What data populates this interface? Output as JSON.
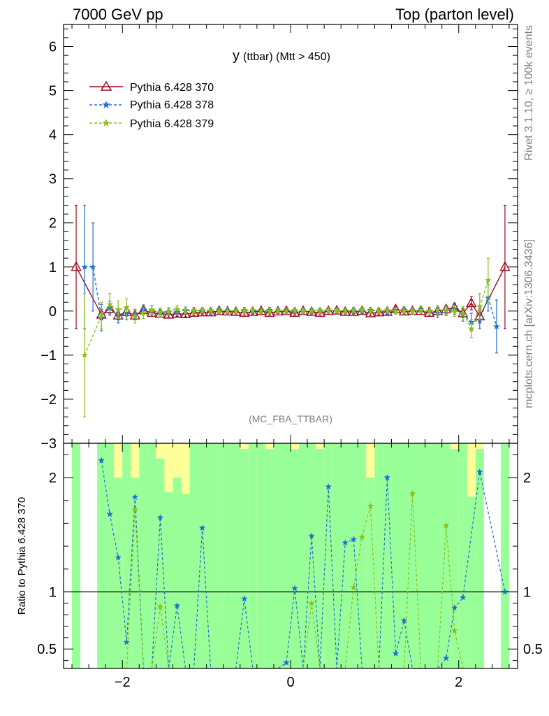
{
  "header": {
    "left": "7000 GeV pp",
    "right": "Top (parton level)"
  },
  "side": {
    "rivet": "Rivet 3.1.10, ≥ 100k events",
    "mcplots": "mcplots.cern.ch [arXiv:1306.3436]"
  },
  "chart_data": {
    "type": "line",
    "title_main": "y",
    "title_sub": "(ttbar) (Mtt > 450)",
    "watermark": "(MC_FBA_TTBAR)",
    "ylabel_ratio": "Ratio to Pythia 6.428 370",
    "xlim": [
      -2.7,
      2.7
    ],
    "ylim": [
      -3,
      6.5
    ],
    "ratio_ylim": [
      0.33,
      2.3
    ],
    "x_ticks": [
      -2,
      0,
      2
    ],
    "y_ticks": [
      -3,
      -2,
      -1,
      0,
      1,
      2,
      3,
      4,
      5,
      6
    ],
    "ratio_ticks": [
      0.5,
      1,
      2
    ],
    "legend_placement": "top-left",
    "x": [
      -2.55,
      -2.45,
      -2.35,
      -2.25,
      -2.15,
      -2.05,
      -1.95,
      -1.85,
      -1.75,
      -1.65,
      -1.55,
      -1.45,
      -1.35,
      -1.25,
      -1.15,
      -1.05,
      -0.95,
      -0.85,
      -0.75,
      -0.65,
      -0.55,
      -0.45,
      -0.35,
      -0.25,
      -0.15,
      -0.05,
      0.05,
      0.15,
      0.25,
      0.35,
      0.45,
      0.55,
      0.65,
      0.75,
      0.85,
      0.95,
      1.05,
      1.15,
      1.25,
      1.35,
      1.45,
      1.55,
      1.65,
      1.75,
      1.85,
      1.95,
      2.05,
      2.15,
      2.25,
      2.35,
      2.45,
      2.55
    ],
    "series": [
      {
        "name": "Pythia 6.428 370",
        "color": "#9b0a20",
        "marker": "triangle",
        "values": [
          1.0,
          null,
          null,
          -0.08,
          0.05,
          -0.1,
          -0.02,
          -0.1,
          0.02,
          -0.04,
          -0.06,
          -0.08,
          -0.06,
          -0.07,
          -0.04,
          -0.03,
          -0.03,
          0.0,
          -0.01,
          -0.02,
          -0.04,
          -0.02,
          0.0,
          -0.04,
          -0.01,
          0.0,
          -0.04,
          0.0,
          -0.02,
          -0.04,
          0.0,
          0.01,
          -0.02,
          -0.02,
          0.0,
          -0.05,
          -0.03,
          -0.02,
          0.04,
          -0.01,
          0.0,
          0.0,
          -0.04,
          0.0,
          0.04,
          0.08,
          -0.05,
          0.18,
          -0.12,
          null,
          null,
          1.0
        ],
        "err": [
          1.4,
          0,
          0,
          0.12,
          0.1,
          0.1,
          0.1,
          0.1,
          0.08,
          0.08,
          0.07,
          0.07,
          0.06,
          0.06,
          0.06,
          0.05,
          0.05,
          0.05,
          0.05,
          0.05,
          0.05,
          0.05,
          0.05,
          0.05,
          0.05,
          0.05,
          0.05,
          0.05,
          0.05,
          0.05,
          0.05,
          0.05,
          0.05,
          0.05,
          0.05,
          0.05,
          0.05,
          0.06,
          0.06,
          0.06,
          0.07,
          0.07,
          0.08,
          0.08,
          0.09,
          0.1,
          0.1,
          0.15,
          0.15,
          0,
          0,
          1.4
        ]
      },
      {
        "name": "Pythia 6.428 378",
        "color": "#1f6fd0",
        "marker": "star",
        "values": [
          null,
          1.0,
          1.0,
          -0.15,
          0.07,
          -0.12,
          -0.05,
          -0.08,
          0.04,
          0.02,
          -0.05,
          -0.03,
          -0.02,
          0.02,
          0.01,
          0.0,
          -0.01,
          0.02,
          0.0,
          0.0,
          0.02,
          0.0,
          0.01,
          0.02,
          0.0,
          0.01,
          0.0,
          -0.01,
          0.0,
          0.01,
          0.02,
          0.0,
          0.01,
          0.0,
          -0.01,
          0.02,
          0.01,
          -0.03,
          0.0,
          0.02,
          0.0,
          0.03,
          -0.01,
          -0.05,
          0.0,
          0.05,
          -0.08,
          -0.25,
          -0.2,
          0.3,
          -0.35,
          null
        ],
        "err": [
          0,
          1.4,
          1.0,
          0.3,
          0.15,
          0.15,
          0.15,
          0.12,
          0.1,
          0.1,
          0.09,
          0.08,
          0.08,
          0.07,
          0.07,
          0.06,
          0.06,
          0.06,
          0.06,
          0.06,
          0.06,
          0.06,
          0.06,
          0.06,
          0.06,
          0.06,
          0.06,
          0.06,
          0.06,
          0.06,
          0.06,
          0.06,
          0.06,
          0.06,
          0.06,
          0.06,
          0.06,
          0.07,
          0.07,
          0.07,
          0.08,
          0.08,
          0.09,
          0.1,
          0.1,
          0.12,
          0.15,
          0.2,
          0.2,
          0.3,
          0.6,
          0
        ]
      },
      {
        "name": "Pythia 6.428 379",
        "color": "#8bbf1a",
        "marker": "star",
        "values": [
          null,
          -1.0,
          null,
          -0.1,
          0.15,
          0.03,
          0.08,
          -0.12,
          -0.05,
          0.03,
          -0.03,
          0.0,
          0.05,
          0.01,
          0.0,
          0.02,
          0.01,
          0.0,
          0.01,
          0.0,
          0.01,
          0.02,
          0.0,
          0.0,
          0.01,
          0.0,
          0.02,
          0.0,
          0.01,
          0.0,
          0.02,
          0.01,
          0.0,
          0.02,
          0.03,
          0.0,
          0.01,
          0.02,
          0.0,
          0.01,
          0.0,
          0.02,
          0.0,
          0.03,
          0.02,
          0.0,
          -0.05,
          -0.4,
          0.1,
          0.7,
          null,
          null
        ],
        "err": [
          0,
          1.4,
          0,
          0.3,
          0.25,
          0.2,
          0.2,
          0.15,
          0.12,
          0.1,
          0.1,
          0.08,
          0.08,
          0.07,
          0.07,
          0.06,
          0.06,
          0.06,
          0.06,
          0.06,
          0.06,
          0.06,
          0.06,
          0.06,
          0.06,
          0.06,
          0.06,
          0.06,
          0.06,
          0.06,
          0.06,
          0.06,
          0.06,
          0.06,
          0.06,
          0.06,
          0.06,
          0.07,
          0.07,
          0.07,
          0.08,
          0.08,
          0.09,
          0.1,
          0.1,
          0.12,
          0.15,
          0.2,
          0.3,
          0.5,
          0,
          0
        ]
      }
    ],
    "ratio_series": [
      {
        "name": "Pythia 6.428 378",
        "color": "#1f6fd0",
        "values": [
          null,
          null,
          null,
          2.15,
          1.68,
          1.3,
          0.56,
          1.83,
          0.2,
          0.2,
          1.65,
          0.2,
          0.88,
          0.2,
          0.2,
          1.56,
          0.2,
          0.2,
          0.2,
          0.2,
          0.94,
          0.2,
          0.2,
          0.2,
          0.2,
          0.38,
          1.03,
          0.2,
          1.49,
          0.2,
          1.92,
          0.2,
          1.43,
          1.46,
          0.2,
          0.2,
          0.2,
          2.0,
          0.46,
          0.75,
          0.2,
          0.2,
          0.2,
          0.2,
          0.42,
          0.86,
          0.95,
          null,
          2.05,
          null,
          null,
          1.0
        ]
      },
      {
        "name": "Pythia 6.428 379",
        "color": "#8bbf1a",
        "values": [
          null,
          null,
          null,
          0.2,
          0.2,
          0.2,
          0.2,
          1.72,
          0.2,
          0.2,
          0.87,
          0.2,
          0.2,
          0.2,
          0.2,
          0.2,
          0.2,
          0.2,
          0.2,
          0.2,
          0.2,
          0.2,
          0.2,
          0.2,
          0.2,
          0.2,
          0.2,
          0.2,
          0.9,
          0.2,
          0.2,
          0.2,
          0.2,
          1.04,
          1.48,
          1.75,
          0.2,
          0.2,
          0.2,
          0.2,
          1.86,
          0.2,
          0.2,
          0.2,
          1.58,
          0.66,
          0.2,
          null,
          null,
          null,
          null,
          null
        ]
      }
    ]
  }
}
